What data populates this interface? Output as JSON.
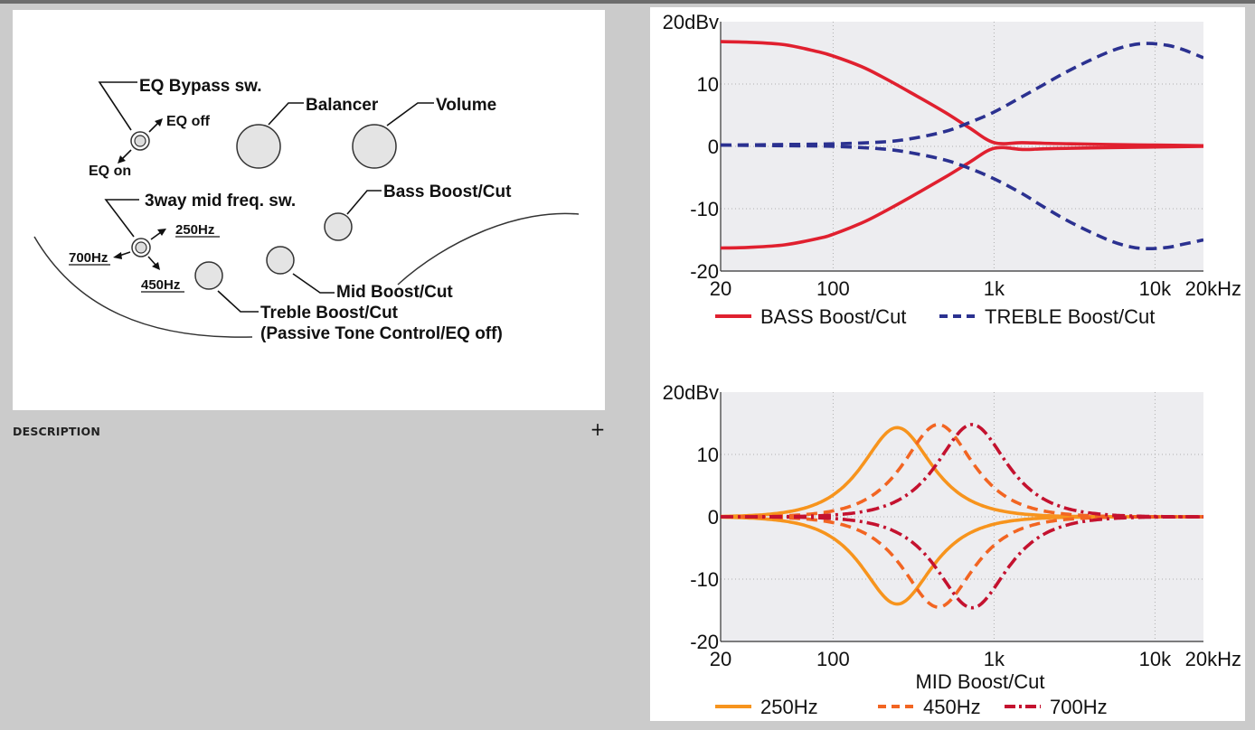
{
  "diagram": {
    "labels": {
      "eq_bypass": "EQ Bypass sw.",
      "eq_off": "EQ off",
      "eq_on": "EQ on",
      "balancer": "Balancer",
      "volume": "Volume",
      "mid_freq_sw": "3way mid freq. sw.",
      "bass": "Bass Boost/Cut",
      "hz250": "250Hz",
      "hz700": "700Hz",
      "hz450": "450Hz",
      "mid": "Mid Boost/Cut",
      "treble": "Treble Boost/Cut",
      "treble_sub": "(Passive Tone Control/EQ off)"
    }
  },
  "description": {
    "label": "DESCRIPTION",
    "expand_symbol": "+"
  },
  "chart_data": [
    {
      "type": "line",
      "title": "",
      "xlabel": "",
      "ylabel": "",
      "x_scale": "log",
      "xlim": [
        20,
        20000
      ],
      "ylim": [
        -20,
        20
      ],
      "x_ticks": [
        20,
        100,
        1000,
        10000,
        20000
      ],
      "x_tick_labels": [
        "20",
        "100",
        "1k",
        "10k",
        "20kHz"
      ],
      "y_ticks": [
        20,
        10,
        0,
        -10,
        -20
      ],
      "y_tick_labels": [
        "20dBv",
        "10",
        "0",
        "-10",
        "-20"
      ],
      "grid": true,
      "legend": "bottom",
      "series": [
        {
          "name": "BASS Boost/Cut",
          "color": "#e0202f",
          "dash": "solid",
          "x": [
            20,
            30,
            50,
            80,
            100,
            150,
            200,
            300,
            500,
            700,
            1000,
            1500,
            2000,
            3000,
            5000,
            10000,
            20000
          ],
          "y": [
            16.8,
            16.7,
            16.3,
            15.2,
            14.5,
            12.8,
            11.2,
            8.7,
            5.4,
            3.0,
            0.6,
            0.6,
            0.5,
            0.4,
            0.3,
            0.2,
            0.1
          ]
        },
        {
          "name": "",
          "color": "#e0202f",
          "dash": "solid",
          "x": [
            20,
            30,
            50,
            80,
            100,
            150,
            200,
            300,
            500,
            700,
            1000,
            1500,
            2000,
            3000,
            5000,
            10000,
            20000
          ],
          "y": [
            -16.3,
            -16.2,
            -15.8,
            -14.8,
            -14.1,
            -12.3,
            -10.7,
            -8.2,
            -4.9,
            -2.6,
            -0.3,
            -0.5,
            -0.4,
            -0.3,
            -0.2,
            -0.1,
            0
          ]
        },
        {
          "name": "TREBLE Boost/Cut",
          "color": "#2b3190",
          "dash": "dashed",
          "x": [
            20,
            50,
            100,
            200,
            300,
            500,
            700,
            1000,
            1500,
            2000,
            3000,
            5000,
            7000,
            9000,
            12000,
            15000,
            20000
          ],
          "y": [
            0.2,
            0.3,
            0.4,
            0.7,
            1.2,
            2.4,
            3.8,
            5.5,
            8.0,
            9.8,
            12.3,
            15.0,
            16.2,
            16.5,
            16.2,
            15.5,
            14.2
          ]
        },
        {
          "name": "",
          "color": "#2b3190",
          "dash": "dashed",
          "x": [
            20,
            50,
            100,
            200,
            300,
            500,
            700,
            1000,
            1500,
            2000,
            3000,
            5000,
            7000,
            9000,
            12000,
            15000,
            20000
          ],
          "y": [
            0.2,
            0.1,
            0,
            -0.4,
            -1.0,
            -2.2,
            -3.5,
            -5.2,
            -7.6,
            -9.6,
            -12.2,
            -14.9,
            -16.1,
            -16.4,
            -16.2,
            -15.7,
            -15.0
          ]
        }
      ]
    },
    {
      "type": "line",
      "title": "",
      "xlabel": "MID Boost/Cut",
      "ylabel": "",
      "x_scale": "log",
      "xlim": [
        20,
        20000
      ],
      "ylim": [
        -20,
        20
      ],
      "x_ticks": [
        20,
        100,
        1000,
        10000,
        20000
      ],
      "x_tick_labels": [
        "20",
        "100",
        "1k",
        "10k",
        "20kHz"
      ],
      "y_ticks": [
        20,
        10,
        0,
        -10,
        -20
      ],
      "y_tick_labels": [
        "20dBv",
        "10",
        "0",
        "-10",
        "-20"
      ],
      "grid": true,
      "legend": "bottom",
      "series": [
        {
          "name": "250Hz",
          "color": "#f7941d",
          "dash": "solid",
          "center": 250,
          "gain": 14.3
        },
        {
          "name": "",
          "color": "#f7941d",
          "dash": "solid",
          "center": 250,
          "gain": -14.0
        },
        {
          "name": "450Hz",
          "color": "#f26522",
          "dash": "dashed",
          "center": 450,
          "gain": 14.8
        },
        {
          "name": "",
          "color": "#f26522",
          "dash": "dashed",
          "center": 450,
          "gain": -14.5
        },
        {
          "name": "700Hz",
          "color": "#c4122f",
          "dash": "dashdot",
          "center": 730,
          "gain": 14.8
        },
        {
          "name": "",
          "color": "#c4122f",
          "dash": "dashdot",
          "center": 730,
          "gain": -14.6
        }
      ]
    }
  ]
}
